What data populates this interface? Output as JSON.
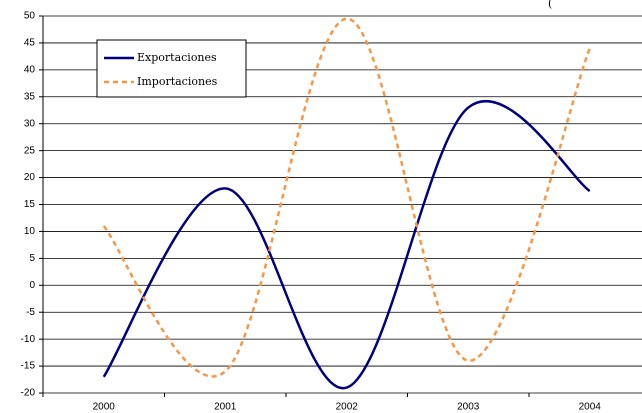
{
  "chart_data": {
    "type": "line",
    "title": "(",
    "categories": [
      "2000",
      "2001",
      "2002",
      "2003",
      "2004"
    ],
    "series": [
      {
        "name": "Exportaciones",
        "color": "#000080",
        "values": [
          -17,
          18,
          -19,
          33,
          17.5
        ]
      },
      {
        "name": "Importaciones",
        "color": "#f79646",
        "values": [
          11,
          -16,
          49.5,
          -14,
          44
        ]
      }
    ],
    "ylim": [
      -20,
      50
    ],
    "yticks": [
      -20,
      -15,
      -10,
      -5,
      0,
      5,
      10,
      15,
      20,
      25,
      30,
      35,
      40,
      45,
      50
    ],
    "grid": true,
    "legend": "upper left"
  }
}
